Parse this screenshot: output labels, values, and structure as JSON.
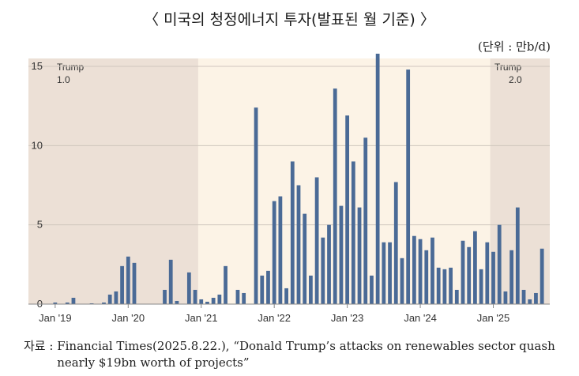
{
  "title": "〈 미국의 청정에너지 투자(발표된 월 기준) 〉",
  "unit": "(단위 : 만b/d)",
  "source_label": "자료 : ",
  "source_text": "Financial Times(2025.8.22.), “Donald Trump’s attacks on renewables sector quash nearly $19bn worth of projects”",
  "colors": {
    "bar": "#4a6a96",
    "plot_bg": "#fcf3e6",
    "shade": "#ece0d6",
    "grid": "#cfc6bd",
    "axis_text": "#333333"
  },
  "chart_data": {
    "type": "bar",
    "ylim": [
      0,
      15.5
    ],
    "yticks": [
      0,
      5,
      10,
      15
    ],
    "x_start": "Jan '19",
    "xticks": [
      {
        "label": "Jan '19",
        "month_index": 0
      },
      {
        "label": "Jan '20",
        "month_index": 12
      },
      {
        "label": "Jan '21",
        "month_index": 24
      },
      {
        "label": "Jan '22",
        "month_index": 36
      },
      {
        "label": "Jan '23",
        "month_index": 48
      },
      {
        "label": "Jan '24",
        "month_index": 60
      },
      {
        "label": "Jan '25",
        "month_index": 72
      }
    ],
    "shaded_periods": [
      {
        "label_line1": "Trump",
        "label_line2": "1.0",
        "start": 0,
        "end": 24,
        "label_align": "left"
      },
      {
        "label_line1": "Trump",
        "label_line2": "2.0",
        "start": 72,
        "end": 80,
        "label_align": "right"
      }
    ],
    "values": [
      0.1,
      0,
      0.1,
      0.4,
      0,
      0,
      0.05,
      0,
      0.1,
      0.6,
      0.8,
      2.4,
      3.0,
      2.6,
      0,
      0,
      0,
      0,
      0.9,
      2.8,
      0.2,
      0,
      2.0,
      0.9,
      0.3,
      0.15,
      0.4,
      0.6,
      2.4,
      0,
      0.9,
      0.7,
      0,
      12.4,
      1.8,
      2.1,
      6.5,
      6.8,
      1.0,
      9.0,
      7.5,
      5.7,
      1.8,
      8.0,
      4.2,
      5.0,
      13.6,
      6.2,
      11.9,
      9.0,
      6.1,
      10.5,
      1.8,
      15.8,
      3.9,
      3.9,
      7.7,
      2.9,
      14.8,
      4.3,
      4.1,
      3.4,
      4.2,
      2.3,
      2.2,
      2.3,
      0.9,
      4.0,
      3.6,
      4.6,
      2.2,
      3.9,
      3.3,
      5.0,
      0.8,
      3.4,
      6.1,
      0.9,
      0.3,
      0.7,
      3.5
    ]
  }
}
